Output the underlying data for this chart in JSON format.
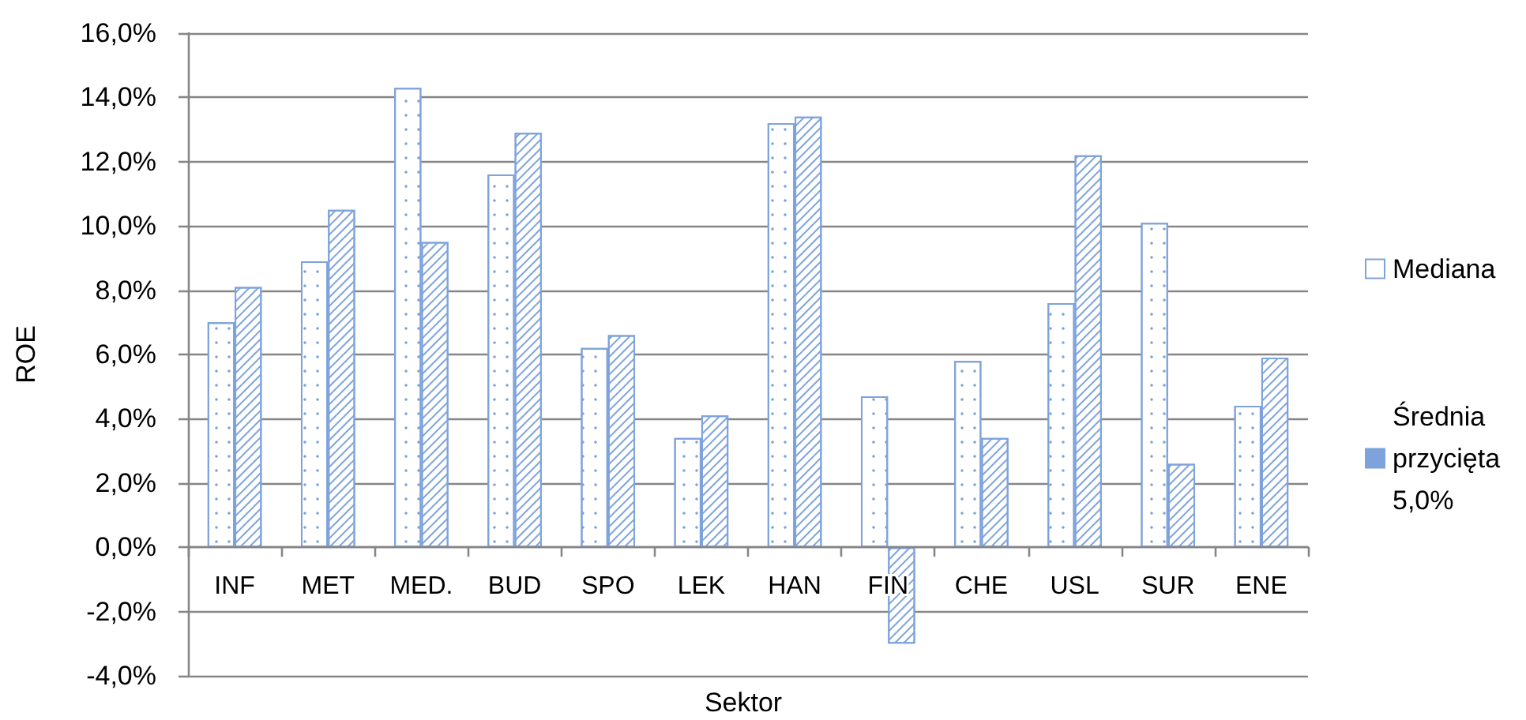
{
  "chart_data": {
    "type": "bar",
    "xlabel": "Sektor",
    "ylabel": "ROE",
    "categories": [
      "INF",
      "MET",
      "MED.",
      "BUD",
      "SPO",
      "LEK",
      "HAN",
      "FIN",
      "CHE",
      "USL",
      "SUR",
      "ENE"
    ],
    "series": [
      {
        "name": "Mediana",
        "color": "#ffffff",
        "values": [
          7.0,
          8.9,
          14.3,
          11.6,
          6.2,
          3.4,
          13.2,
          4.7,
          5.8,
          7.6,
          10.1,
          4.4
        ]
      },
      {
        "name": "Średnia przycięta 5,0%",
        "color": "#7ea3dc",
        "values": [
          8.1,
          10.5,
          9.5,
          12.9,
          6.6,
          4.1,
          13.4,
          -3.0,
          3.4,
          12.2,
          2.6,
          5.9
        ]
      }
    ],
    "ylim": [
      -4,
      16
    ],
    "yticks": [
      {
        "value": -4,
        "label": "-4,0%"
      },
      {
        "value": -2,
        "label": "-2,0%"
      },
      {
        "value": 0,
        "label": "0,0%"
      },
      {
        "value": 2,
        "label": "2,0%"
      },
      {
        "value": 4,
        "label": "4,0%"
      },
      {
        "value": 6,
        "label": "6,0%"
      },
      {
        "value": 8,
        "label": "8,0%"
      },
      {
        "value": 10,
        "label": "10,0%"
      },
      {
        "value": 12,
        "label": "12,0%"
      },
      {
        "value": 14,
        "label": "14,0%"
      },
      {
        "value": 16,
        "label": "16,0%"
      }
    ],
    "grid": "y",
    "legend": "right"
  }
}
